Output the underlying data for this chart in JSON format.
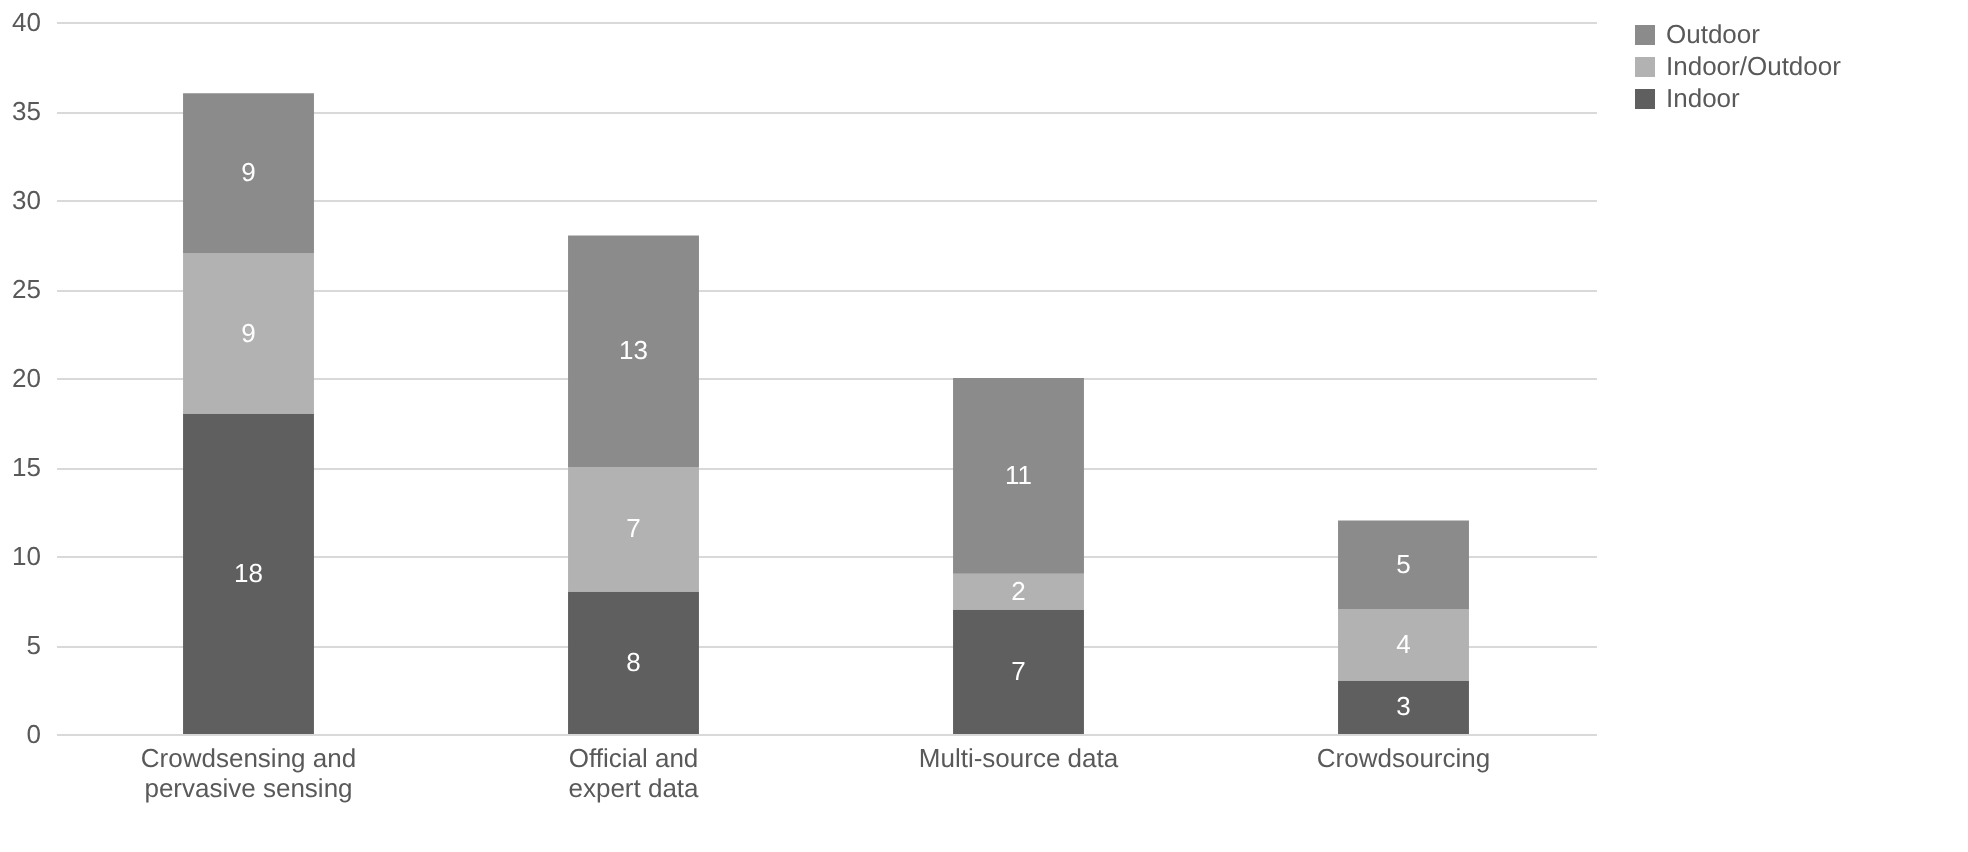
{
  "chart_data": {
    "type": "bar",
    "stacked": true,
    "categories": [
      "Crowdsensing and pervasive sensing",
      "Official and expert data",
      "Multi-source data",
      "Crowdsourcing"
    ],
    "series": [
      {
        "name": "Indoor",
        "color": "#5f5f5f",
        "values": [
          18,
          8,
          7,
          3
        ]
      },
      {
        "name": "Indoor/Outdoor",
        "color": "#b2b2b2",
        "values": [
          9,
          7,
          2,
          4
        ]
      },
      {
        "name": "Outdoor",
        "color": "#8b8b8b",
        "values": [
          9,
          13,
          11,
          5
        ]
      }
    ],
    "ylim": [
      0,
      40
    ],
    "yticks": [
      0,
      5,
      10,
      15,
      20,
      25,
      30,
      35,
      40
    ],
    "grid": "y",
    "legend": "right",
    "data_labels": true
  }
}
